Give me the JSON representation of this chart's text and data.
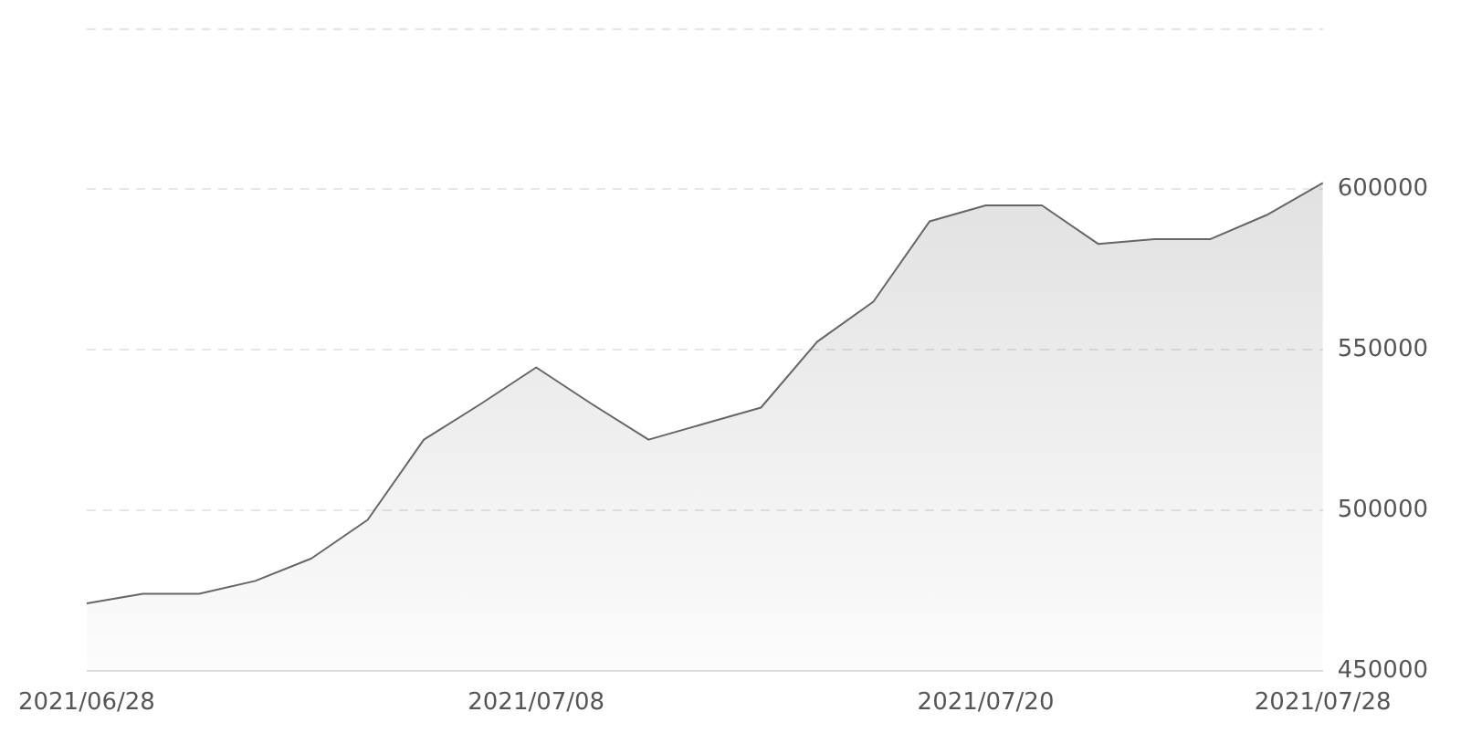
{
  "chart_data": {
    "type": "area",
    "categories": [
      "2021/06/28",
      null,
      null,
      null,
      null,
      null,
      null,
      null,
      "2021/07/08",
      null,
      null,
      null,
      null,
      null,
      null,
      null,
      "2021/07/20",
      null,
      null,
      null,
      null,
      null,
      "2021/07/28"
    ],
    "series": [
      {
        "color": "#666666",
        "values": [
          471000,
          474000,
          474000,
          478000,
          485000,
          497000,
          522000,
          533000,
          544500,
          533000,
          522000,
          527000,
          532000,
          552500,
          565000,
          590000,
          595000,
          595000,
          583000,
          584500,
          584500,
          592000,
          602000
        ]
      }
    ],
    "ylim": [
      450000,
      650000
    ],
    "yticks": [
      450000,
      500000,
      550000,
      600000,
      {
        "value": 650000,
        "label": null
      }
    ],
    "grid": "y",
    "legend": false
  }
}
